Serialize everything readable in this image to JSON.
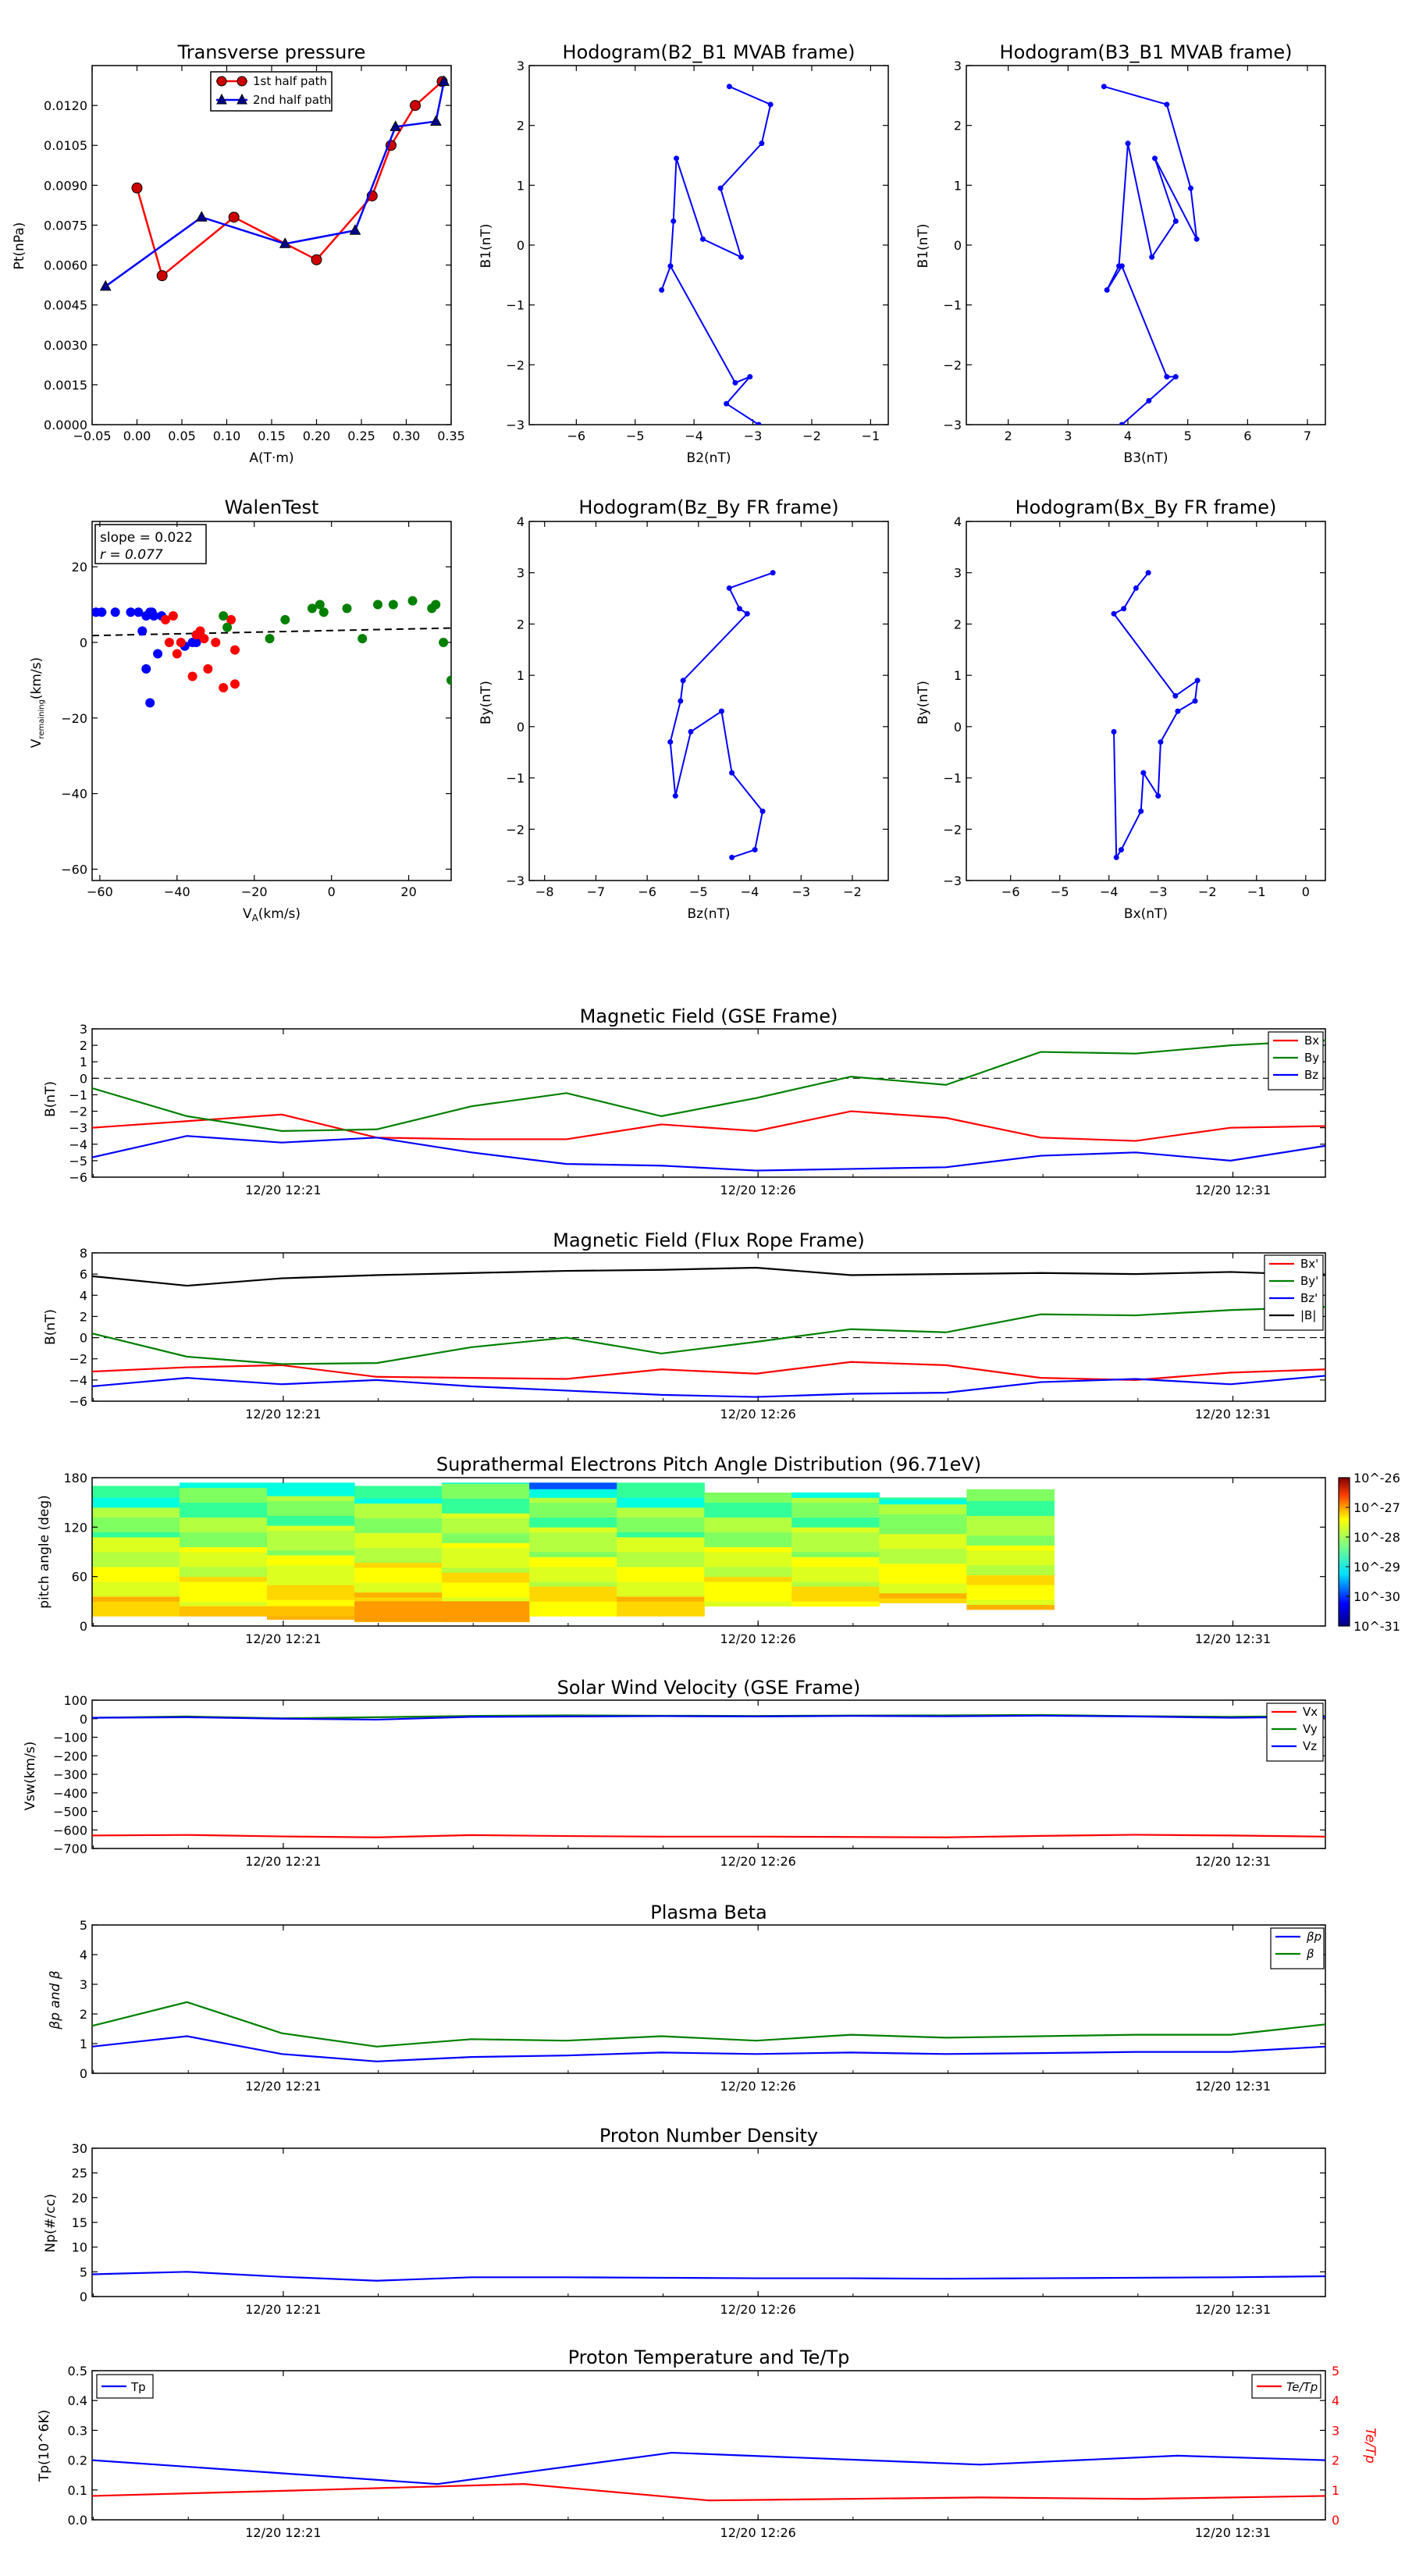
{
  "colors": {
    "red": "#ff0000",
    "green": "#008000",
    "blue": "#0000ff",
    "black": "#000000"
  },
  "chart_data": [
    {
      "id": "tp",
      "type": "line",
      "title": "Transverse pressure",
      "xlabel": "A(T·m)",
      "ylabel": "Pt(nPa)",
      "xlim": [
        -0.05,
        0.35
      ],
      "ylim": [
        0,
        0.0135
      ],
      "xticks": [
        "−0.05",
        "0.00",
        "0.05",
        "0.10",
        "0.15",
        "0.20",
        "0.25",
        "0.30",
        "0.35"
      ],
      "yticks": [
        "0.0000",
        "0.0015",
        "0.0030",
        "0.0045",
        "0.0060",
        "0.0075",
        "0.0090",
        "0.0105",
        "0.0120"
      ],
      "legend": [
        "1st half path",
        "2nd half path"
      ],
      "series": [
        {
          "name": "1st half path",
          "color": "red",
          "marker": "circle",
          "x": [
            0.0,
            0.028,
            0.108,
            0.2,
            0.262,
            0.283,
            0.31,
            0.34
          ],
          "y": [
            0.0089,
            0.0056,
            0.0078,
            0.0062,
            0.0086,
            0.0105,
            0.012,
            0.0129
          ]
        },
        {
          "name": "2nd half path",
          "color": "blue",
          "marker": "triangle",
          "x": [
            -0.035,
            0.072,
            0.165,
            0.243,
            0.288,
            0.333,
            0.342
          ],
          "y": [
            0.0052,
            0.0078,
            0.0068,
            0.0073,
            0.0112,
            0.0114,
            0.0129
          ]
        }
      ]
    },
    {
      "id": "h1",
      "type": "line",
      "title": "Hodogram(B2_B1 MVAB frame)",
      "xlabel": "B2(nT)",
      "ylabel": "B1(nT)",
      "xlim": [
        -6.8,
        -0.7
      ],
      "ylim": [
        -3,
        3
      ],
      "xticks": [
        "−6",
        "−5",
        "−4",
        "−3",
        "−2",
        "−1"
      ],
      "yticks": [
        "−3",
        "−2",
        "−1",
        "0",
        "1",
        "2",
        "3"
      ],
      "x": [
        -3.4,
        -2.7,
        -2.85,
        -3.55,
        -3.2,
        -3.85,
        -4.3,
        -4.35,
        -4.4,
        -4.55,
        -4.4,
        -3.3,
        -3.05,
        -3.45,
        -2.9
      ],
      "y": [
        2.65,
        2.35,
        1.7,
        0.95,
        -0.2,
        0.1,
        1.45,
        0.4,
        -0.35,
        -0.75,
        -0.35,
        -2.3,
        -2.2,
        -2.65,
        -3.0
      ]
    },
    {
      "id": "h2",
      "type": "line",
      "title": "Hodogram(B3_B1 MVAB frame)",
      "xlabel": "B3(nT)",
      "ylabel": "B1(nT)",
      "xlim": [
        1.3,
        7.3
      ],
      "ylim": [
        -3,
        3
      ],
      "xticks": [
        "2",
        "3",
        "4",
        "5",
        "6",
        "7"
      ],
      "yticks": [
        "−3",
        "−2",
        "−1",
        "0",
        "1",
        "2",
        "3"
      ],
      "x": [
        3.6,
        4.65,
        5.05,
        5.15,
        4.45,
        4.8,
        4.4,
        4.0,
        3.85,
        3.65,
        3.9,
        4.65,
        4.8,
        4.35,
        3.9
      ],
      "y": [
        2.65,
        2.35,
        0.95,
        0.1,
        1.45,
        0.4,
        -0.2,
        1.7,
        -0.35,
        -0.75,
        -0.35,
        -2.2,
        -2.2,
        -2.6,
        -3.0
      ]
    },
    {
      "id": "wt",
      "type": "scatter",
      "title": "WalenTest",
      "xlabel": "V_A(km/s)",
      "ylabel": "V_remaining(km/s)",
      "xlim": [
        -62,
        31
      ],
      "ylim": [
        -63,
        32
      ],
      "xticks": [
        "−60",
        "−40",
        "−20",
        "0",
        "20"
      ],
      "yticks": [
        "−60",
        "−40",
        "−20",
        "0",
        "20"
      ],
      "annotation": [
        "slope = 0.022",
        "r = 0.077"
      ],
      "fit": {
        "slope": 0.022,
        "x": [
          -62,
          31
        ],
        "y": [
          1.8,
          3.8
        ]
      },
      "series": [
        {
          "color": "blue",
          "x": [
            -61,
            -59.5,
            -56,
            -52,
            -50,
            -48,
            -49,
            -47,
            -46,
            -44,
            -45,
            -48,
            -47,
            -46.5,
            -38,
            -35,
            -36
          ],
          "y": [
            8,
            8,
            8,
            8,
            8,
            7,
            3,
            8,
            7,
            7,
            -3,
            -7,
            -16,
            8,
            -1,
            0,
            0
          ]
        },
        {
          "color": "red",
          "x": [
            -43,
            -41,
            -42,
            -40,
            -39,
            -36,
            -34,
            -33,
            -35,
            -32,
            -30,
            -28,
            -26,
            -25,
            -25
          ],
          "y": [
            6,
            7,
            0,
            -3,
            0,
            -9,
            3,
            1,
            2,
            -7,
            0,
            -12,
            6,
            -2,
            -11
          ]
        },
        {
          "color": "green",
          "x": [
            -28,
            -27,
            -16,
            -12,
            -5,
            -3,
            -2,
            4,
            8,
            12,
            16,
            21,
            26,
            27,
            29,
            31
          ],
          "y": [
            7,
            4,
            1,
            6,
            9,
            10,
            8,
            9,
            1,
            10,
            10,
            11,
            9,
            10,
            0,
            -10
          ]
        }
      ]
    },
    {
      "id": "h3",
      "type": "line",
      "title": "Hodogram(Bz_By FR frame)",
      "xlabel": "Bz(nT)",
      "ylabel": "By(nT)",
      "xlim": [
        -8.3,
        -1.3
      ],
      "ylim": [
        -3,
        4
      ],
      "xticks": [
        "−8",
        "−7",
        "−6",
        "−5",
        "−4",
        "−3",
        "−2"
      ],
      "yticks": [
        "−3",
        "−2",
        "−1",
        "0",
        "1",
        "2",
        "3",
        "4"
      ],
      "x": [
        -3.55,
        -4.4,
        -4.2,
        -4.05,
        -5.3,
        -5.35,
        -5.55,
        -5.45,
        -5.15,
        -4.55,
        -4.35,
        -3.75,
        -3.9,
        -4.35
      ],
      "y": [
        3.0,
        2.7,
        2.3,
        2.2,
        0.9,
        0.5,
        -0.3,
        -1.35,
        -0.1,
        0.3,
        -0.9,
        -1.65,
        -2.4,
        -2.55
      ]
    },
    {
      "id": "h4",
      "type": "line",
      "title": "Hodogram(Bx_By FR frame)",
      "xlabel": "Bx(nT)",
      "ylabel": "By(nT)",
      "xlim": [
        -6.9,
        0.4
      ],
      "ylim": [
        -3,
        4
      ],
      "xticks": [
        "−6",
        "−5",
        "−4",
        "−3",
        "−2",
        "−1",
        "0"
      ],
      "yticks": [
        "−3",
        "−2",
        "−1",
        "0",
        "1",
        "2",
        "3",
        "4"
      ],
      "x": [
        -3.2,
        -3.45,
        -3.7,
        -3.9,
        -2.65,
        -2.2,
        -2.25,
        -2.6,
        -2.95,
        -3.0,
        -3.3,
        -3.35,
        -3.75,
        -3.85,
        -3.9
      ],
      "y": [
        3.0,
        2.7,
        2.3,
        2.2,
        0.6,
        0.9,
        0.5,
        0.3,
        -0.3,
        -1.35,
        -0.9,
        -1.65,
        -2.4,
        -2.55,
        -0.1
      ]
    },
    {
      "id": "mfgse",
      "type": "line",
      "title": "Magnetic Field (GSE Frame)",
      "ylabel": "B(nT)",
      "ylim": [
        -6,
        3
      ],
      "yticks": [
        "−6",
        "−5",
        "−4",
        "−3",
        "−2",
        "−1",
        "0",
        "1",
        "2",
        "3"
      ],
      "xticks": [
        "12/20 12:21",
        "12/20 12:26",
        "12/20 12:31"
      ],
      "zero_line": true,
      "legend": [
        "Bx",
        "By",
        "Bz"
      ],
      "series": [
        {
          "name": "Bx",
          "color": "red",
          "values": [
            -3.0,
            -2.6,
            -2.2,
            -3.6,
            -3.7,
            -3.7,
            -2.8,
            -3.2,
            -2.0,
            -2.4,
            -3.6,
            -3.8,
            -3.0,
            -2.9
          ]
        },
        {
          "name": "By",
          "color": "green",
          "values": [
            -0.6,
            -2.3,
            -3.2,
            -3.1,
            -1.7,
            -0.9,
            -2.3,
            -1.2,
            0.1,
            -0.4,
            1.6,
            1.5,
            2.0,
            2.3
          ]
        },
        {
          "name": "Bz",
          "color": "blue",
          "values": [
            -4.8,
            -3.5,
            -3.9,
            -3.6,
            -4.5,
            -5.2,
            -5.3,
            -5.6,
            -5.5,
            -5.4,
            -4.7,
            -4.5,
            -5.0,
            -4.1
          ]
        }
      ]
    },
    {
      "id": "mffr",
      "type": "line",
      "title": "Magnetic Field (Flux Rope Frame)",
      "ylabel": "B(nT)",
      "ylim": [
        -6,
        8
      ],
      "yticks": [
        "−6",
        "−4",
        "−2",
        "0",
        "2",
        "4",
        "6",
        "8"
      ],
      "xticks": [
        "12/20 12:21",
        "12/20 12:26",
        "12/20 12:31"
      ],
      "zero_line": true,
      "legend": [
        "Bx'",
        "By'",
        "Bz'",
        "|B|"
      ],
      "series": [
        {
          "name": "Bx'",
          "color": "red",
          "values": [
            -3.2,
            -2.8,
            -2.6,
            -3.7,
            -3.8,
            -3.9,
            -3.0,
            -3.4,
            -2.3,
            -2.6,
            -3.8,
            -4.0,
            -3.3,
            -3.0
          ]
        },
        {
          "name": "By'",
          "color": "green",
          "values": [
            0.4,
            -1.8,
            -2.5,
            -2.4,
            -0.9,
            0.0,
            -1.5,
            -0.4,
            0.8,
            0.5,
            2.2,
            2.1,
            2.6,
            2.9
          ]
        },
        {
          "name": "Bz'",
          "color": "blue",
          "values": [
            -4.6,
            -3.8,
            -4.4,
            -4.0,
            -4.6,
            -5.0,
            -5.4,
            -5.6,
            -5.3,
            -5.2,
            -4.2,
            -3.9,
            -4.4,
            -3.6
          ]
        },
        {
          "name": "|B|",
          "color": "black",
          "values": [
            5.8,
            4.9,
            5.6,
            5.9,
            6.1,
            6.3,
            6.4,
            6.6,
            5.9,
            6.0,
            6.1,
            6.0,
            6.2,
            5.9
          ]
        }
      ]
    },
    {
      "id": "pad",
      "type": "heatmap",
      "title": "Suprathermal Electrons Pitch Angle Distribution (96.71eV)",
      "ylabel": "pitch angle (deg)",
      "ylim": [
        0,
        180
      ],
      "yticks": [
        "0",
        "60",
        "120",
        "180"
      ],
      "xticks": [
        "12/20 12:21",
        "12/20 12:26",
        "12/20 12:31"
      ],
      "colorbar_labels": [
        "10^-26",
        "10^-27",
        "10^-28",
        "10^-29",
        "10^-30",
        "10^-31"
      ],
      "columns": 11,
      "bin_ranges": [
        [
          12,
          170
        ],
        [
          12,
          174
        ],
        [
          8,
          174
        ],
        [
          5,
          170
        ],
        [
          5,
          174
        ],
        [
          12,
          174
        ],
        [
          12,
          174
        ],
        [
          24,
          162
        ],
        [
          24,
          162
        ],
        [
          28,
          156
        ],
        [
          20,
          166
        ]
      ]
    },
    {
      "id": "vsw",
      "type": "line",
      "title": "Solar Wind Velocity (GSE Frame)",
      "ylabel": "Vsw(km/s)",
      "ylim": [
        -700,
        100
      ],
      "yticks": [
        "−700",
        "−600",
        "−500",
        "−400",
        "−300",
        "−200",
        "−100",
        "0",
        "100"
      ],
      "xticks": [
        "12/20 12:21",
        "12/20 12:26",
        "12/20 12:31"
      ],
      "legend": [
        "Vx",
        "Vy",
        "Vz"
      ],
      "series": [
        {
          "name": "Vx",
          "color": "red",
          "values": [
            -630,
            -627,
            -635,
            -640,
            -628,
            -633,
            -636,
            -636,
            -638,
            -640,
            -632,
            -626,
            -630,
            -636
          ]
        },
        {
          "name": "Vy",
          "color": "green",
          "values": [
            5,
            12,
            2,
            8,
            15,
            18,
            16,
            15,
            17,
            18,
            20,
            14,
            10,
            15
          ]
        },
        {
          "name": "Vz",
          "color": "blue",
          "values": [
            5,
            8,
            0,
            -5,
            10,
            12,
            14,
            12,
            15,
            13,
            16,
            12,
            5,
            10
          ]
        }
      ]
    },
    {
      "id": "beta",
      "type": "line",
      "title": "Plasma Beta",
      "ylabel": "βp and β",
      "ylim": [
        0,
        5
      ],
      "yticks": [
        "0",
        "1",
        "2",
        "3",
        "4",
        "5"
      ],
      "xticks": [
        "12/20 12:21",
        "12/20 12:26",
        "12/20 12:31"
      ],
      "legend": [
        "βp",
        "β"
      ],
      "series": [
        {
          "name": "βp",
          "color": "blue",
          "values": [
            0.9,
            1.25,
            0.65,
            0.4,
            0.55,
            0.6,
            0.7,
            0.65,
            0.7,
            0.65,
            0.68,
            0.72,
            0.72,
            0.9
          ]
        },
        {
          "name": "β",
          "color": "green",
          "values": [
            1.6,
            2.4,
            1.35,
            0.9,
            1.15,
            1.1,
            1.25,
            1.1,
            1.3,
            1.2,
            1.25,
            1.3,
            1.3,
            1.65
          ]
        }
      ]
    },
    {
      "id": "np",
      "type": "line",
      "title": "Proton Number Density",
      "ylabel": "Np(#/cc)",
      "ylim": [
        0,
        30
      ],
      "yticks": [
        "0",
        "5",
        "10",
        "15",
        "20",
        "25",
        "30"
      ],
      "xticks": [
        "12/20 12:21",
        "12/20 12:26",
        "12/20 12:31"
      ],
      "series": [
        {
          "name": "Np",
          "color": "blue",
          "values": [
            4.5,
            5.0,
            4.0,
            3.2,
            3.9,
            3.9,
            3.8,
            3.7,
            3.7,
            3.6,
            3.7,
            3.8,
            3.9,
            4.1
          ]
        }
      ]
    },
    {
      "id": "tpr",
      "type": "line",
      "title": "Proton Temperature and Te/Tp",
      "ylabel": "Tp(10^6K)",
      "ylabel2": "Te/Tp",
      "ylim": [
        0,
        0.5
      ],
      "ylim2": [
        0,
        5
      ],
      "yticks": [
        "0.0",
        "0.1",
        "0.2",
        "0.3",
        "0.4",
        "0.5"
      ],
      "yticks2": [
        "0",
        "1",
        "2",
        "3",
        "4",
        "5"
      ],
      "xticks": [
        "12/20 12:21",
        "12/20 12:26",
        "12/20 12:31"
      ],
      "legend": [
        "Tp",
        "Te/Tp"
      ],
      "series": [
        {
          "name": "Tp",
          "color": "blue",
          "axis": "left",
          "x": [
            0,
            0.28,
            0.47,
            0.72,
            0.88,
            1.0
          ],
          "values": [
            0.2,
            0.12,
            0.225,
            0.185,
            0.215,
            0.2
          ]
        },
        {
          "name": "Te/Tp",
          "color": "red",
          "axis": "right",
          "x": [
            0,
            0.18,
            0.35,
            0.5,
            0.72,
            0.85,
            1.0
          ],
          "values": [
            0.8,
            1.0,
            1.2,
            0.65,
            0.75,
            0.7,
            0.8
          ]
        }
      ]
    }
  ]
}
